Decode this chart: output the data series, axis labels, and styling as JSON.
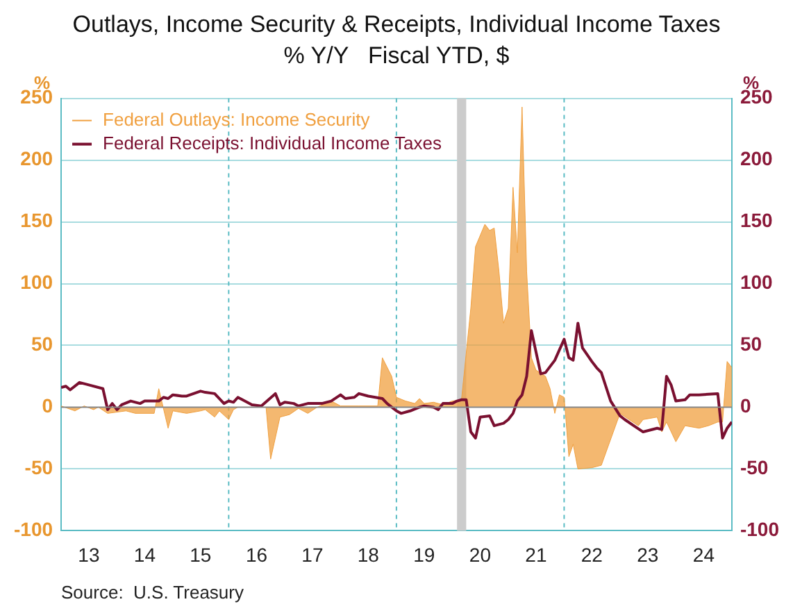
{
  "chart_data": {
    "type": "line",
    "title": "Outlays, Income Security & Receipts, Individual Income Taxes",
    "subtitle": "% Y/Y   Fiscal YTD, $",
    "ylabel": "%",
    "y2label": "%",
    "annotations": [
      "Source:  U.S. Treasury"
    ],
    "xlim": [
      "2013-01",
      "2025-01"
    ],
    "xticks": [
      {
        "value": "2013-07",
        "label": "13"
      },
      {
        "value": "2014-07",
        "label": "14"
      },
      {
        "value": "2015-07",
        "label": "15"
      },
      {
        "value": "2016-07",
        "label": "16"
      },
      {
        "value": "2017-07",
        "label": "17"
      },
      {
        "value": "2018-07",
        "label": "18"
      },
      {
        "value": "2019-07",
        "label": "19"
      },
      {
        "value": "2020-07",
        "label": "20"
      },
      {
        "value": "2021-07",
        "label": "21"
      },
      {
        "value": "2022-07",
        "label": "22"
      },
      {
        "value": "2023-07",
        "label": "23"
      },
      {
        "value": "2024-07",
        "label": "24"
      }
    ],
    "ylim": [
      -100,
      250
    ],
    "yticks": [
      -100,
      -50,
      0,
      50,
      100,
      150,
      200,
      250
    ],
    "y2lim": [
      -100,
      250
    ],
    "y2ticks": [
      -100,
      -50,
      0,
      50,
      100,
      150,
      200,
      250
    ],
    "grid": "y",
    "legend": "top left",
    "marker": "none",
    "bands": [
      {
        "axis": "x",
        "from": "2020-02",
        "to": "2020-04",
        "color": "#cccccc"
      }
    ],
    "ref_lines": [
      {
        "axis": "x",
        "value": "2016-01",
        "color": "#5bbcc4",
        "line_style": "dashed"
      },
      {
        "axis": "x",
        "value": "2019-01",
        "color": "#5bbcc4",
        "line_style": "dashed"
      },
      {
        "axis": "x",
        "value": "2022-01",
        "color": "#5bbcc4",
        "line_style": "dashed"
      },
      {
        "axis": "y",
        "value": 0,
        "color": "#888888",
        "line_style": "solid"
      }
    ],
    "series": [
      {
        "name": "Federal Outlays: Income Security",
        "type": "area",
        "color": "#f0a040",
        "x": [
          "2013-01",
          "2013-04",
          "2013-06",
          "2013-08",
          "2013-09",
          "2013-11",
          "2014-03",
          "2014-05",
          "2014-09",
          "2014-10",
          "2014-12",
          "2015-01",
          "2015-04",
          "2015-07",
          "2015-08",
          "2015-10",
          "2015-11",
          "2016-01",
          "2016-02",
          "2016-03",
          "2016-09",
          "2016-10",
          "2016-12",
          "2017-02",
          "2017-04",
          "2017-06",
          "2017-08",
          "2017-11",
          "2018-01",
          "2018-05",
          "2018-09",
          "2018-10",
          "2018-12",
          "2019-01",
          "2019-03",
          "2019-05",
          "2019-06",
          "2019-07",
          "2019-09",
          "2019-11",
          "2020-01",
          "2020-03",
          "2020-05",
          "2020-06",
          "2020-08",
          "2020-09",
          "2020-10",
          "2020-11",
          "2020-12",
          "2021-01",
          "2021-02",
          "2021-03",
          "2021-04",
          "2021-05",
          "2021-06",
          "2021-07",
          "2021-09",
          "2021-10",
          "2021-11",
          "2021-12",
          "2022-01",
          "2022-02",
          "2022-03",
          "2022-04",
          "2022-07",
          "2022-09",
          "2023-01",
          "2023-03",
          "2023-05",
          "2023-06",
          "2023-09",
          "2023-10",
          "2023-11",
          "2024-01",
          "2024-03",
          "2024-06",
          "2024-08",
          "2024-10",
          "2024-11",
          "2024-12",
          "2025-01"
        ],
        "values": [
          1,
          -3,
          1,
          -2,
          0,
          -5,
          -3,
          -5,
          -5,
          15,
          -17,
          -3,
          -5,
          -3,
          -2,
          -8,
          -3,
          -10,
          -2,
          0,
          0,
          -42,
          -8,
          -6,
          -1,
          -5,
          0,
          5,
          1,
          1,
          1,
          40,
          25,
          8,
          5,
          3,
          7,
          3,
          4,
          2,
          5,
          6,
          80,
          130,
          148,
          143,
          145,
          110,
          68,
          80,
          178,
          125,
          243,
          110,
          40,
          30,
          25,
          15,
          -5,
          10,
          8,
          -40,
          -30,
          -50,
          -49,
          -47,
          -5,
          -10,
          -15,
          -10,
          -8,
          -20,
          -12,
          -28,
          -15,
          -17,
          -15,
          -12,
          -12,
          37,
          32
        ]
      },
      {
        "name": "Federal Receipts: Individual Income Taxes",
        "axis": "y2",
        "color": "#7a1030",
        "x": [
          "2013-01",
          "2013-02",
          "2013-03",
          "2013-05",
          "2013-07",
          "2013-10",
          "2013-11",
          "2013-12",
          "2014-01",
          "2014-02",
          "2014-04",
          "2014-05",
          "2014-06",
          "2014-07",
          "2014-10",
          "2014-11",
          "2014-12",
          "2015-01",
          "2015-03",
          "2015-04",
          "2015-07",
          "2015-08",
          "2015-10",
          "2015-12",
          "2016-01",
          "2016-02",
          "2016-03",
          "2016-06",
          "2016-08",
          "2016-11",
          "2016-12",
          "2017-01",
          "2017-03",
          "2017-04",
          "2017-06",
          "2017-09",
          "2017-11",
          "2018-01",
          "2018-02",
          "2018-04",
          "2018-05",
          "2018-07",
          "2018-10",
          "2018-11",
          "2019-01",
          "2019-02",
          "2019-04",
          "2019-06",
          "2019-07",
          "2019-09",
          "2019-10",
          "2019-11",
          "2020-01",
          "2020-02",
          "2020-03",
          "2020-04",
          "2020-05",
          "2020-06",
          "2020-07",
          "2020-09",
          "2020-10",
          "2020-12",
          "2021-01",
          "2021-02",
          "2021-03",
          "2021-04",
          "2021-05",
          "2021-06",
          "2021-08",
          "2021-09",
          "2021-11",
          "2022-01",
          "2022-02",
          "2022-03",
          "2022-04",
          "2022-05",
          "2022-07",
          "2022-08",
          "2022-09",
          "2022-11",
          "2023-01",
          "2023-02",
          "2023-04",
          "2023-06",
          "2023-09",
          "2023-10",
          "2023-11",
          "2023-12",
          "2024-01",
          "2024-03",
          "2024-04",
          "2024-06",
          "2024-10",
          "2024-11",
          "2024-12",
          "2025-01"
        ],
        "values": [
          16,
          17,
          14,
          20,
          18,
          15,
          -2,
          3,
          -2,
          2,
          5,
          4,
          3,
          5,
          5,
          8,
          7,
          10,
          9,
          9,
          13,
          12,
          11,
          3,
          5,
          4,
          8,
          2,
          1,
          11,
          2,
          4,
          3,
          1,
          3,
          3,
          5,
          10,
          7,
          8,
          11,
          9,
          7,
          3,
          -3,
          -5,
          -3,
          0,
          1,
          0,
          -2,
          3,
          3,
          5,
          6,
          6,
          -20,
          -25,
          -8,
          -7,
          -15,
          -13,
          -10,
          -5,
          5,
          10,
          25,
          62,
          27,
          28,
          38,
          55,
          40,
          38,
          68,
          48,
          37,
          32,
          28,
          5,
          -7,
          -10,
          -15,
          -20,
          -17,
          -18,
          25,
          18,
          5,
          6,
          10,
          10,
          11,
          -25,
          -17,
          -12
        ]
      }
    ]
  }
}
